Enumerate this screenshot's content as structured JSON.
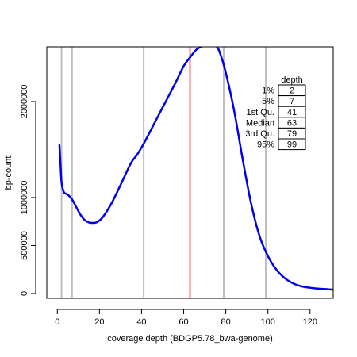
{
  "chart_data": {
    "type": "line",
    "title": "",
    "xlabel": "coverage depth (BDGP5.78_bwa-genome)",
    "ylabel": "bp-count",
    "xlim": [
      -5,
      131
    ],
    "ylim": [
      -50000,
      2570000
    ],
    "x_ticks": [
      0,
      20,
      40,
      60,
      80,
      100,
      120
    ],
    "y_ticks": [
      0,
      500000,
      1000000,
      2000000
    ],
    "series": [
      {
        "color": "#0000ee",
        "x": [
          1,
          1.5,
          2,
          3,
          4,
          5,
          7,
          9,
          11,
          13,
          15,
          17,
          18,
          19,
          21,
          23,
          26,
          30,
          35,
          38,
          41,
          46,
          51,
          56,
          60,
          63,
          66,
          69,
          72,
          73,
          75,
          77,
          80,
          84,
          88,
          92,
          96,
          100,
          104,
          108,
          112,
          116,
          120,
          124,
          128,
          131
        ],
        "y": [
          1545000,
          1350000,
          1160000,
          1060000,
          1040000,
          1030000,
          980000,
          900000,
          820000,
          765000,
          740000,
          735000,
          737000,
          745000,
          780000,
          840000,
          950000,
          1130000,
          1360000,
          1450000,
          1560000,
          1770000,
          1980000,
          2190000,
          2370000,
          2460000,
          2540000,
          2580000,
          2610000,
          2610000,
          2590000,
          2520000,
          2300000,
          1900000,
          1400000,
          940000,
          600000,
          390000,
          250000,
          160000,
          105000,
          75000,
          60000,
          50000,
          45000,
          40000
        ]
      }
    ],
    "vlines": [
      {
        "x": 2,
        "color": "#bebebe"
      },
      {
        "x": 7,
        "color": "#bebebe"
      },
      {
        "x": 41,
        "color": "#bebebe"
      },
      {
        "x": 63,
        "color": "#ff0000"
      },
      {
        "x": 79,
        "color": "#bebebe"
      },
      {
        "x": 99,
        "color": "#bebebe"
      }
    ],
    "table": {
      "header": "depth",
      "rows": [
        {
          "label": "1%",
          "value": "2"
        },
        {
          "label": "5%",
          "value": "7"
        },
        {
          "label": "1st Qu.",
          "value": "41"
        },
        {
          "label": "Median",
          "value": "63"
        },
        {
          "label": "3rd Qu.",
          "value": "79"
        },
        {
          "label": "95%",
          "value": "99"
        }
      ]
    }
  }
}
